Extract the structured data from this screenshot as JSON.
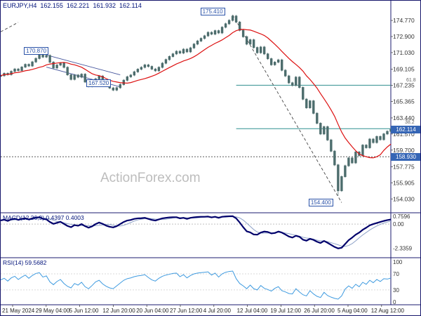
{
  "header": {
    "symbol": "EURJPY,H4",
    "open": "162.155",
    "high": "162.221",
    "low": "161.932",
    "close": "162.114"
  },
  "watermark": "ActionForex.com",
  "panels": {
    "macd_label": "MACD(12,26,9) 0.4397 0.4003",
    "rsi_label": "RSI(14) 59.5682"
  },
  "annotations": {
    "peak_label": "175.410",
    "trough_label": "154.400",
    "swing_high_label": "170.870",
    "swing_low_label": "167.520",
    "fib_618_label": "61.8",
    "fib_382_label": "38.2",
    "current_price_flag": "162.114",
    "support_flag": "158.930"
  },
  "colors": {
    "candle": "#4d6d6d",
    "ma": "#dd1111",
    "macd": "#00006b",
    "macd_signal": "#8fa3c8",
    "rsi": "#3f9be0",
    "level_teal": "#2f8f8f",
    "flag_blue": "#3565b5",
    "annotation_blue": "#2a52a8",
    "navy": "#1b1b6f",
    "axis_text": "#333333",
    "watermark_gray": "#bdbdbd",
    "dashed": "#444444",
    "channel": "#44549c"
  },
  "chart_data": {
    "type": "candlestick",
    "symbol": "EURJPY",
    "timeframe": "H4",
    "x_ticks": [
      "21 May 2024",
      "29 May 04:00",
      "5 Jun 12:00",
      "12 Jun 20:00",
      "20 Jun 04:00",
      "27 Jun 12:00",
      "4 Jul 20:00",
      "12 Jul 04:00",
      "19 Jul 12:00",
      "26 Jul 20:00",
      "5 Aug 04:00",
      "12 Aug 12:00"
    ],
    "price_panel": {
      "ylim": [
        152.5,
        176.9
      ],
      "axis_ticks": [
        174.77,
        172.9,
        171.03,
        169.105,
        167.235,
        165.365,
        163.44,
        161.57,
        159.7,
        157.775,
        155.905,
        154.03
      ],
      "closes": [
        168.35,
        168.62,
        168.48,
        168.85,
        169.12,
        168.95,
        169.35,
        169.66,
        169.48,
        169.95,
        170.35,
        170.78,
        170.52,
        170.7,
        169.92,
        169.25,
        169.58,
        169.8,
        169.32,
        168.45,
        167.92,
        168.42,
        168.18,
        168.52,
        167.62,
        167.12,
        167.42,
        167.98,
        168.3,
        167.72,
        167.22,
        166.92,
        166.68,
        166.95,
        167.32,
        167.82,
        168.22,
        168.42,
        168.8,
        169.1,
        169.32,
        169.6,
        169.42,
        169.12,
        168.92,
        169.32,
        169.8,
        170.22,
        170.58,
        170.88,
        171.18,
        170.98,
        171.42,
        171.12,
        171.58,
        172.02,
        172.38,
        172.68,
        172.98,
        173.38,
        173.18,
        173.58,
        173.32,
        173.98,
        174.38,
        174.78,
        175.28,
        174.58,
        173.62,
        172.88,
        172.02,
        172.52,
        171.62,
        171.02,
        171.68,
        170.88,
        170.32,
        169.62,
        169.92,
        170.18,
        168.98,
        168.32,
        167.52,
        167.22,
        168.18,
        166.98,
        165.62,
        164.62,
        165.42,
        163.98,
        162.82,
        161.58,
        162.42,
        160.88,
        159.58,
        157.98,
        154.98,
        156.62,
        157.88,
        158.78,
        158.22,
        159.48,
        159.08,
        160.28,
        159.98,
        160.98,
        160.58,
        161.28,
        160.92,
        161.58,
        161.88,
        162.11
      ],
      "peak_idx": 66,
      "peak": 175.41,
      "trough_idx": 96,
      "trough": 154.4,
      "current_price": 162.114,
      "swing_high_idx": 11,
      "swing_low_idx": 28,
      "ma_window": 13,
      "levels": {
        "support": 158.93,
        "fib618": 167.235,
        "fib382": 162.19,
        "fib_start_idx": 67
      },
      "channel": {
        "i1": 13,
        "i2": 34,
        "top": [
          170.75,
          168.45
        ],
        "bottom": [
          169.35,
          167.05
        ]
      },
      "trendlines": [
        {
          "i1": 66,
          "p1": 175.41,
          "i2": 97,
          "p2": 153.6
        },
        {
          "i1": 0,
          "p1": 173.45,
          "i2": 5,
          "p2": 174.55
        }
      ]
    },
    "macd": {
      "ylim": [
        -3.1,
        0.95
      ],
      "axis_ticks": [
        {
          "v": 0.7596,
          "label": "0.7596"
        },
        {
          "v": 0,
          "label": "0.00"
        },
        {
          "v": -2.3359,
          "label": "-2.3359"
        }
      ],
      "signal_window": 5,
      "current": 0.4397,
      "current_signal": 0.4003,
      "values": [
        0.35,
        0.42,
        0.3,
        0.45,
        0.52,
        0.4,
        0.5,
        0.56,
        0.44,
        0.55,
        0.62,
        0.66,
        0.5,
        0.45,
        0.2,
        0.02,
        0.12,
        0.22,
        0.02,
        -0.18,
        -0.3,
        -0.1,
        -0.16,
        0,
        -0.2,
        -0.35,
        -0.22,
        0,
        0.15,
        0.02,
        -0.15,
        -0.26,
        -0.32,
        -0.2,
        0,
        0.2,
        0.34,
        0.4,
        0.5,
        0.55,
        0.56,
        0.6,
        0.5,
        0.4,
        0.34,
        0.45,
        0.55,
        0.6,
        0.64,
        0.66,
        0.66,
        0.55,
        0.6,
        0.5,
        0.6,
        0.65,
        0.68,
        0.7,
        0.7,
        0.72,
        0.64,
        0.7,
        0.6,
        0.7,
        0.73,
        0.75,
        0.76,
        0.55,
        0.15,
        -0.3,
        -0.7,
        -0.8,
        -1.0,
        -1.02,
        -0.82,
        -0.72,
        -0.76,
        -0.9,
        -0.86,
        -0.72,
        -0.82,
        -1.0,
        -1.2,
        -1.3,
        -1.12,
        -1.22,
        -1.5,
        -1.6,
        -1.42,
        -1.52,
        -1.7,
        -1.82,
        -1.62,
        -1.8,
        -2.0,
        -2.2,
        -2.34,
        -2.28,
        -1.92,
        -1.55,
        -1.3,
        -1.02,
        -0.82,
        -0.55,
        -0.35,
        -0.12,
        0,
        0.1,
        0.2,
        0.3,
        0.38,
        0.44
      ]
    },
    "rsi": {
      "ylim": [
        0,
        105
      ],
      "axis_ticks": [
        100,
        70,
        30,
        0
      ],
      "guides": [
        70,
        30
      ],
      "current": 59.5682,
      "values": [
        55,
        59,
        52,
        60,
        64,
        56,
        62,
        67,
        59,
        66,
        71,
        73,
        62,
        65,
        50,
        43,
        51,
        56,
        46,
        39,
        35,
        46,
        42,
        49,
        38,
        33,
        41,
        50,
        54,
        45,
        39,
        35,
        33,
        40,
        47,
        54,
        58,
        60,
        63,
        65,
        66,
        68,
        61,
        55,
        52,
        59,
        64,
        67,
        69,
        71,
        72,
        63,
        68,
        60,
        66,
        70,
        72,
        73,
        74,
        75,
        67,
        72,
        62,
        70,
        74,
        76,
        77,
        58,
        46,
        40,
        33,
        42,
        33,
        30,
        41,
        34,
        31,
        27,
        34,
        38,
        28,
        25,
        21,
        20,
        33,
        25,
        18,
        15,
        28,
        20,
        14,
        11,
        24,
        16,
        12,
        9,
        7,
        15,
        32,
        40,
        34,
        44,
        38,
        49,
        44,
        54,
        48,
        56,
        51,
        58,
        57,
        59.57
      ]
    }
  }
}
